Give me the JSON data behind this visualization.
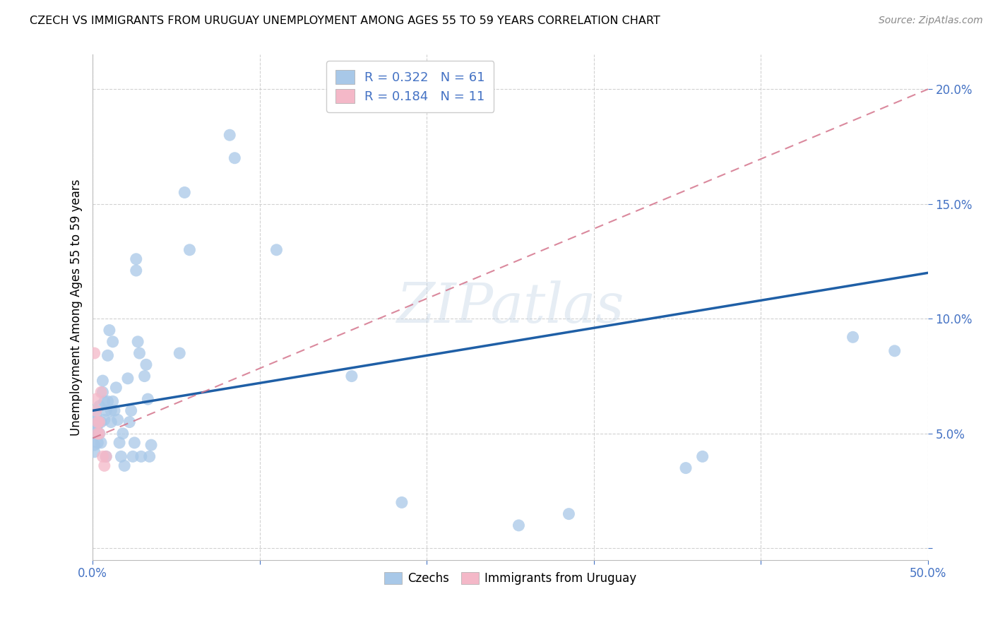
{
  "title": "CZECH VS IMMIGRANTS FROM URUGUAY UNEMPLOYMENT AMONG AGES 55 TO 59 YEARS CORRELATION CHART",
  "source": "Source: ZipAtlas.com",
  "ylabel": "Unemployment Among Ages 55 to 59 years",
  "xlim": [
    0.0,
    0.5
  ],
  "ylim": [
    -0.005,
    0.215
  ],
  "xticks": [
    0.0,
    0.1,
    0.2,
    0.3,
    0.4,
    0.5
  ],
  "xticklabels": [
    "0.0%",
    "",
    "",
    "",
    "",
    "50.0%"
  ],
  "yticks": [
    0.0,
    0.05,
    0.1,
    0.15,
    0.2
  ],
  "yticklabels": [
    "",
    "5.0%",
    "10.0%",
    "15.0%",
    "20.0%"
  ],
  "legend1_label": "R = 0.322   N = 61",
  "legend2_label": "R = 0.184   N = 11",
  "czech_color": "#a8c8e8",
  "uruguay_color": "#f4b8c8",
  "czech_line_color": "#1f5fa6",
  "uruguay_line_color": "#d4748c",
  "watermark": "ZIPatlas",
  "czech_scatter": [
    [
      0.001,
      0.055
    ],
    [
      0.001,
      0.05
    ],
    [
      0.001,
      0.045
    ],
    [
      0.001,
      0.042
    ],
    [
      0.002,
      0.052
    ],
    [
      0.002,
      0.058
    ],
    [
      0.003,
      0.054
    ],
    [
      0.003,
      0.046
    ],
    [
      0.004,
      0.062
    ],
    [
      0.004,
      0.05
    ],
    [
      0.005,
      0.046
    ],
    [
      0.005,
      0.055
    ],
    [
      0.006,
      0.068
    ],
    [
      0.006,
      0.073
    ],
    [
      0.007,
      0.064
    ],
    [
      0.007,
      0.056
    ],
    [
      0.008,
      0.04
    ],
    [
      0.008,
      0.06
    ],
    [
      0.009,
      0.084
    ],
    [
      0.009,
      0.064
    ],
    [
      0.01,
      0.095
    ],
    [
      0.011,
      0.055
    ],
    [
      0.011,
      0.06
    ],
    [
      0.012,
      0.064
    ],
    [
      0.012,
      0.09
    ],
    [
      0.013,
      0.06
    ],
    [
      0.014,
      0.07
    ],
    [
      0.015,
      0.056
    ],
    [
      0.016,
      0.046
    ],
    [
      0.017,
      0.04
    ],
    [
      0.018,
      0.05
    ],
    [
      0.019,
      0.036
    ],
    [
      0.021,
      0.074
    ],
    [
      0.022,
      0.055
    ],
    [
      0.023,
      0.06
    ],
    [
      0.024,
      0.04
    ],
    [
      0.025,
      0.046
    ],
    [
      0.026,
      0.121
    ],
    [
      0.026,
      0.126
    ],
    [
      0.027,
      0.09
    ],
    [
      0.028,
      0.085
    ],
    [
      0.029,
      0.04
    ],
    [
      0.031,
      0.075
    ],
    [
      0.032,
      0.08
    ],
    [
      0.033,
      0.065
    ],
    [
      0.034,
      0.04
    ],
    [
      0.035,
      0.045
    ],
    [
      0.052,
      0.085
    ],
    [
      0.055,
      0.155
    ],
    [
      0.058,
      0.13
    ],
    [
      0.082,
      0.18
    ],
    [
      0.085,
      0.17
    ],
    [
      0.11,
      0.13
    ],
    [
      0.155,
      0.075
    ],
    [
      0.185,
      0.02
    ],
    [
      0.255,
      0.01
    ],
    [
      0.285,
      0.015
    ],
    [
      0.355,
      0.035
    ],
    [
      0.365,
      0.04
    ],
    [
      0.455,
      0.092
    ],
    [
      0.48,
      0.086
    ]
  ],
  "uruguay_scatter": [
    [
      0.001,
      0.085
    ],
    [
      0.002,
      0.065
    ],
    [
      0.002,
      0.06
    ],
    [
      0.003,
      0.055
    ],
    [
      0.003,
      0.05
    ],
    [
      0.004,
      0.055
    ],
    [
      0.004,
      0.05
    ],
    [
      0.005,
      0.068
    ],
    [
      0.006,
      0.04
    ],
    [
      0.007,
      0.036
    ],
    [
      0.008,
      0.04
    ]
  ],
  "czech_line_x": [
    0.0,
    0.5
  ],
  "czech_line_y": [
    0.06,
    0.12
  ],
  "uruguay_line_x": [
    0.0,
    0.5
  ],
  "uruguay_line_y": [
    0.048,
    0.2
  ]
}
